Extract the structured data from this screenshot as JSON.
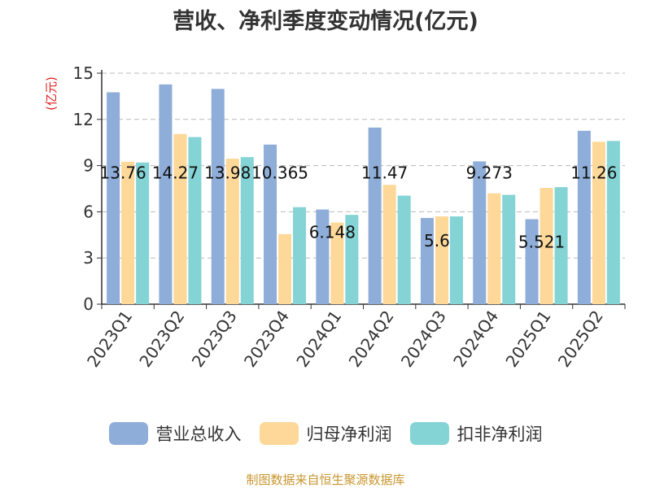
{
  "chart_data": {
    "type": "bar",
    "title": "营收、净利季度变动情况(亿元)",
    "unit_label": "(亿元)",
    "categories": [
      "2023Q1",
      "2023Q2",
      "2023Q3",
      "2023Q4",
      "2024Q1",
      "2024Q2",
      "2024Q3",
      "2024Q4",
      "2025Q1",
      "2025Q2"
    ],
    "series": [
      {
        "name": "营业总收入",
        "color": "#8eadd8",
        "values": [
          13.76,
          14.27,
          13.98,
          10.365,
          6.148,
          11.47,
          5.6,
          9.273,
          5.521,
          11.26
        ]
      },
      {
        "name": "归母净利润",
        "color": "#fdd898",
        "values": [
          9.25,
          11.05,
          9.45,
          4.55,
          5.3,
          7.75,
          5.7,
          7.2,
          7.55,
          10.55
        ]
      },
      {
        "name": "扣非净利润",
        "color": "#84d3d5",
        "values": [
          9.2,
          10.85,
          9.55,
          6.3,
          5.8,
          7.05,
          5.7,
          7.1,
          7.6,
          10.6
        ]
      }
    ],
    "data_labels": [
      "13.76",
      "14.27",
      "13.98",
      "10.365",
      "6.148",
      "11.47",
      "5.6",
      "9.273",
      "5.521",
      "11.26"
    ],
    "yticks": [
      0,
      3,
      6,
      9,
      12,
      15
    ],
    "ylim": [
      0,
      15
    ],
    "grid": true,
    "legend_position": "bottom"
  },
  "source_note": "制图数据来自恒生聚源数据库"
}
